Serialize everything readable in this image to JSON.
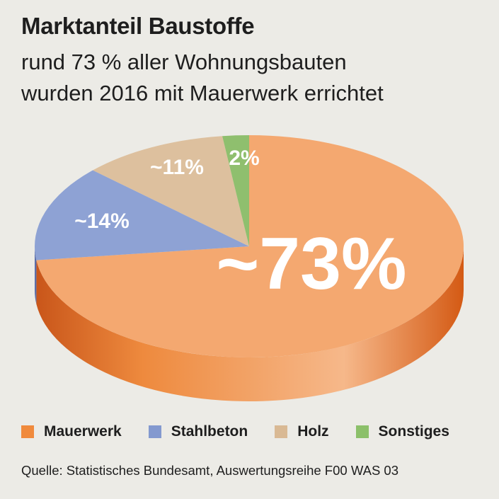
{
  "header": {
    "title": "Marktanteil Baustoffe",
    "subtitle_line1": "rund 73 % aller Wohnungsbauten",
    "subtitle_line2": "wurden 2016 mit Mauerwerk errichtet"
  },
  "chart_data": {
    "type": "pie",
    "title": "Marktanteil Baustoffe",
    "style": "3d",
    "legend_position": "bottom",
    "categories": [
      "Mauerwerk",
      "Stahlbeton",
      "Holz",
      "Sonstiges"
    ],
    "values": [
      73,
      14,
      11,
      2
    ],
    "labels": [
      "~73%",
      "~14%",
      "~11%",
      "2%"
    ],
    "colors": [
      "#f4a870",
      "#8ea2d4",
      "#ddc09e",
      "#8fbf6e"
    ],
    "side_colors": [
      "#e36a1f",
      "#5b6ea8",
      "#b89a78",
      "#5f9a45"
    ]
  },
  "legend": {
    "items": [
      {
        "label": "Mauerwerk",
        "color": "#f08a3c"
      },
      {
        "label": "Stahlbeton",
        "color": "#8399cf"
      },
      {
        "label": "Holz",
        "color": "#d9b994"
      },
      {
        "label": "Sonstiges",
        "color": "#8cc06a"
      }
    ]
  },
  "footer": {
    "source": "Quelle: Statistisches Bundesamt, Auswertungsreihe F00 WAS 03"
  }
}
